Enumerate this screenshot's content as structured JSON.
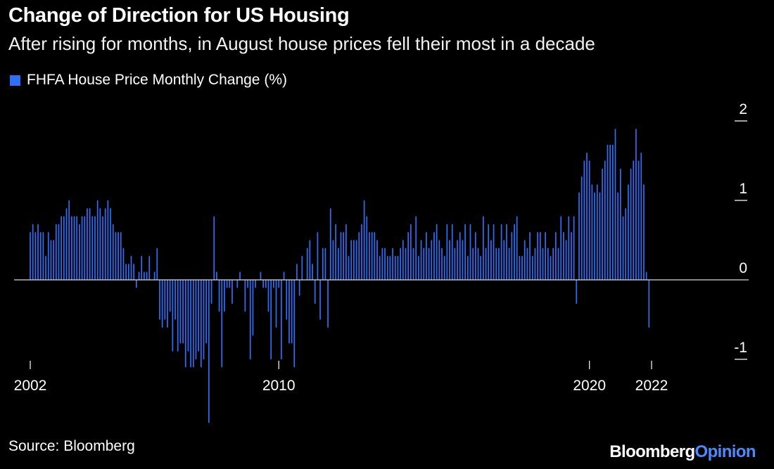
{
  "chart_data": {
    "type": "bar",
    "title": "Change of Direction for US Housing",
    "subtitle": "After rising for months, in August house prices fell their most in a decade",
    "series": [
      {
        "name": "FHFA House Price Monthly Change (%)",
        "start": "2002-01",
        "values": [
          0.6,
          0.7,
          0.6,
          0.7,
          0.6,
          0.6,
          0.3,
          0.6,
          0.5,
          0.5,
          0.7,
          0.7,
          0.8,
          0.8,
          0.9,
          1.0,
          0.8,
          0.8,
          0.8,
          0.7,
          0.8,
          0.8,
          0.9,
          0.9,
          0.8,
          0.8,
          1.0,
          0.9,
          0.8,
          0.9,
          1.0,
          0.9,
          0.7,
          0.6,
          0.6,
          0.6,
          0.4,
          0.2,
          0.2,
          0.3,
          0.2,
          -0.1,
          0.1,
          0.3,
          0.1,
          0.1,
          0.3,
          0.0,
          0.1,
          0.4,
          -0.5,
          -0.6,
          -0.5,
          -0.6,
          -0.4,
          -0.9,
          -0.5,
          -0.9,
          -0.8,
          -0.8,
          -1.1,
          -0.9,
          -1.1,
          -1.1,
          -1.0,
          -0.9,
          -1.1,
          -1.0,
          -0.8,
          -1.8,
          -0.3,
          0.8,
          0.1,
          -0.4,
          -1.1,
          -0.4,
          -0.1,
          -0.1,
          -0.3,
          0.0,
          -0.1,
          0.1,
          0.0,
          -0.4,
          -0.1,
          -1.0,
          -0.7,
          -0.1,
          0.0,
          0.1,
          -0.1,
          -0.1,
          -0.4,
          -1.0,
          -0.1,
          -0.6,
          -0.1,
          -1.0,
          0.1,
          -0.5,
          -0.8,
          -0.8,
          -1.1,
          0.2,
          -0.2,
          0.3,
          0.0,
          0.4,
          0.5,
          0.2,
          -0.3,
          0.6,
          -0.5,
          0.4,
          0.4,
          -0.6,
          0.9,
          0.5,
          0.7,
          0.4,
          0.6,
          0.6,
          0.7,
          0.3,
          0.5,
          0.5,
          0.5,
          0.6,
          0.7,
          1.0,
          0.8,
          0.6,
          0.6,
          0.6,
          0.5,
          0.3,
          0.4,
          0.4,
          0.3,
          0.3,
          0.4,
          0.3,
          0.3,
          0.4,
          0.5,
          0.4,
          0.6,
          0.7,
          0.4,
          0.8,
          0.3,
          0.5,
          0.4,
          0.6,
          0.4,
          0.5,
          0.6,
          0.7,
          0.5,
          0.4,
          0.3,
          0.7,
          0.5,
          0.7,
          0.4,
          0.5,
          0.6,
          0.5,
          0.7,
          0.3,
          0.7,
          0.4,
          0.6,
          0.4,
          0.3,
          0.8,
          0.4,
          0.7,
          0.5,
          0.7,
          0.4,
          0.4,
          0.7,
          0.5,
          0.7,
          0.4,
          0.6,
          0.7,
          0.8,
          0.3,
          0.3,
          0.5,
          0.4,
          0.6,
          0.3,
          0.4,
          0.6,
          0.6,
          0.4,
          0.6,
          0.4,
          0.3,
          0.4,
          0.6,
          0.4,
          0.8,
          0.6,
          0.5,
          0.8,
          0.6,
          0.8,
          -0.3,
          1.1,
          1.3,
          1.5,
          1.6,
          1.5,
          1.2,
          1.1,
          1.2,
          1.1,
          1.4,
          1.5,
          1.7,
          1.7,
          1.7,
          1.9,
          1.1,
          1.4,
          0.8,
          0.9,
          1.2,
          1.4,
          1.5,
          1.9,
          1.5,
          1.6,
          1.2,
          0.1,
          -0.6
        ]
      }
    ],
    "x_tick_labels": [
      "2002",
      "2010",
      "2020",
      "2022"
    ],
    "x_tick_years": [
      2002,
      2010,
      2020,
      2022
    ],
    "y_tick_labels": [
      "2",
      "1",
      "0",
      "-1"
    ],
    "y_tick_values": [
      2,
      1,
      0,
      -1
    ],
    "ylim": [
      -1.85,
      2.1
    ],
    "grid": false,
    "legend_position": "top-left",
    "colors": {
      "background": "#000000",
      "bar": "#2e6ff5",
      "zero_line": "#d8d8d8",
      "axis_text": "#ffffff"
    }
  },
  "source": "Source: Bloomberg",
  "brand": {
    "part1": "Bloomberg",
    "part2": "Opinion"
  }
}
